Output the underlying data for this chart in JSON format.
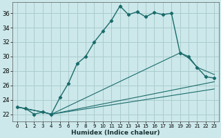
{
  "xlabel": "Humidex (Indice chaleur)",
  "bg_color": "#cce8ea",
  "grid_color": "#aaccce",
  "line_color": "#1a6b6b",
  "xlim": [
    -0.5,
    23.5
  ],
  "ylim": [
    21.0,
    37.5
  ],
  "yticks": [
    22,
    24,
    26,
    28,
    30,
    32,
    34,
    36
  ],
  "xticks": [
    0,
    1,
    2,
    3,
    4,
    5,
    6,
    7,
    8,
    9,
    10,
    11,
    12,
    13,
    14,
    15,
    16,
    17,
    18,
    19,
    20,
    21,
    22,
    23
  ],
  "series1_x": [
    0,
    1,
    2,
    3,
    4,
    5,
    6,
    7,
    8,
    9,
    10,
    11,
    12,
    13,
    14,
    15,
    16,
    17,
    18,
    19,
    20,
    21,
    22,
    23
  ],
  "series1_y": [
    23.0,
    22.8,
    22.0,
    22.3,
    22.0,
    24.3,
    26.3,
    29.0,
    30.0,
    32.0,
    33.5,
    35.0,
    37.0,
    35.8,
    36.2,
    35.5,
    36.1,
    35.8,
    36.0,
    30.5,
    30.0,
    28.5,
    27.2,
    27.0
  ],
  "series2_x": [
    0,
    3,
    4,
    19,
    20,
    21,
    22,
    23
  ],
  "series2_y": [
    23.0,
    22.3,
    22.0,
    30.5,
    29.8,
    28.5,
    28.0,
    27.5
  ],
  "series3_x": [
    0,
    3,
    4,
    23
  ],
  "series3_y": [
    23.0,
    22.3,
    22.0,
    26.5
  ],
  "series4_x": [
    0,
    3,
    4,
    23
  ],
  "series4_y": [
    23.0,
    22.3,
    22.0,
    25.5
  ]
}
